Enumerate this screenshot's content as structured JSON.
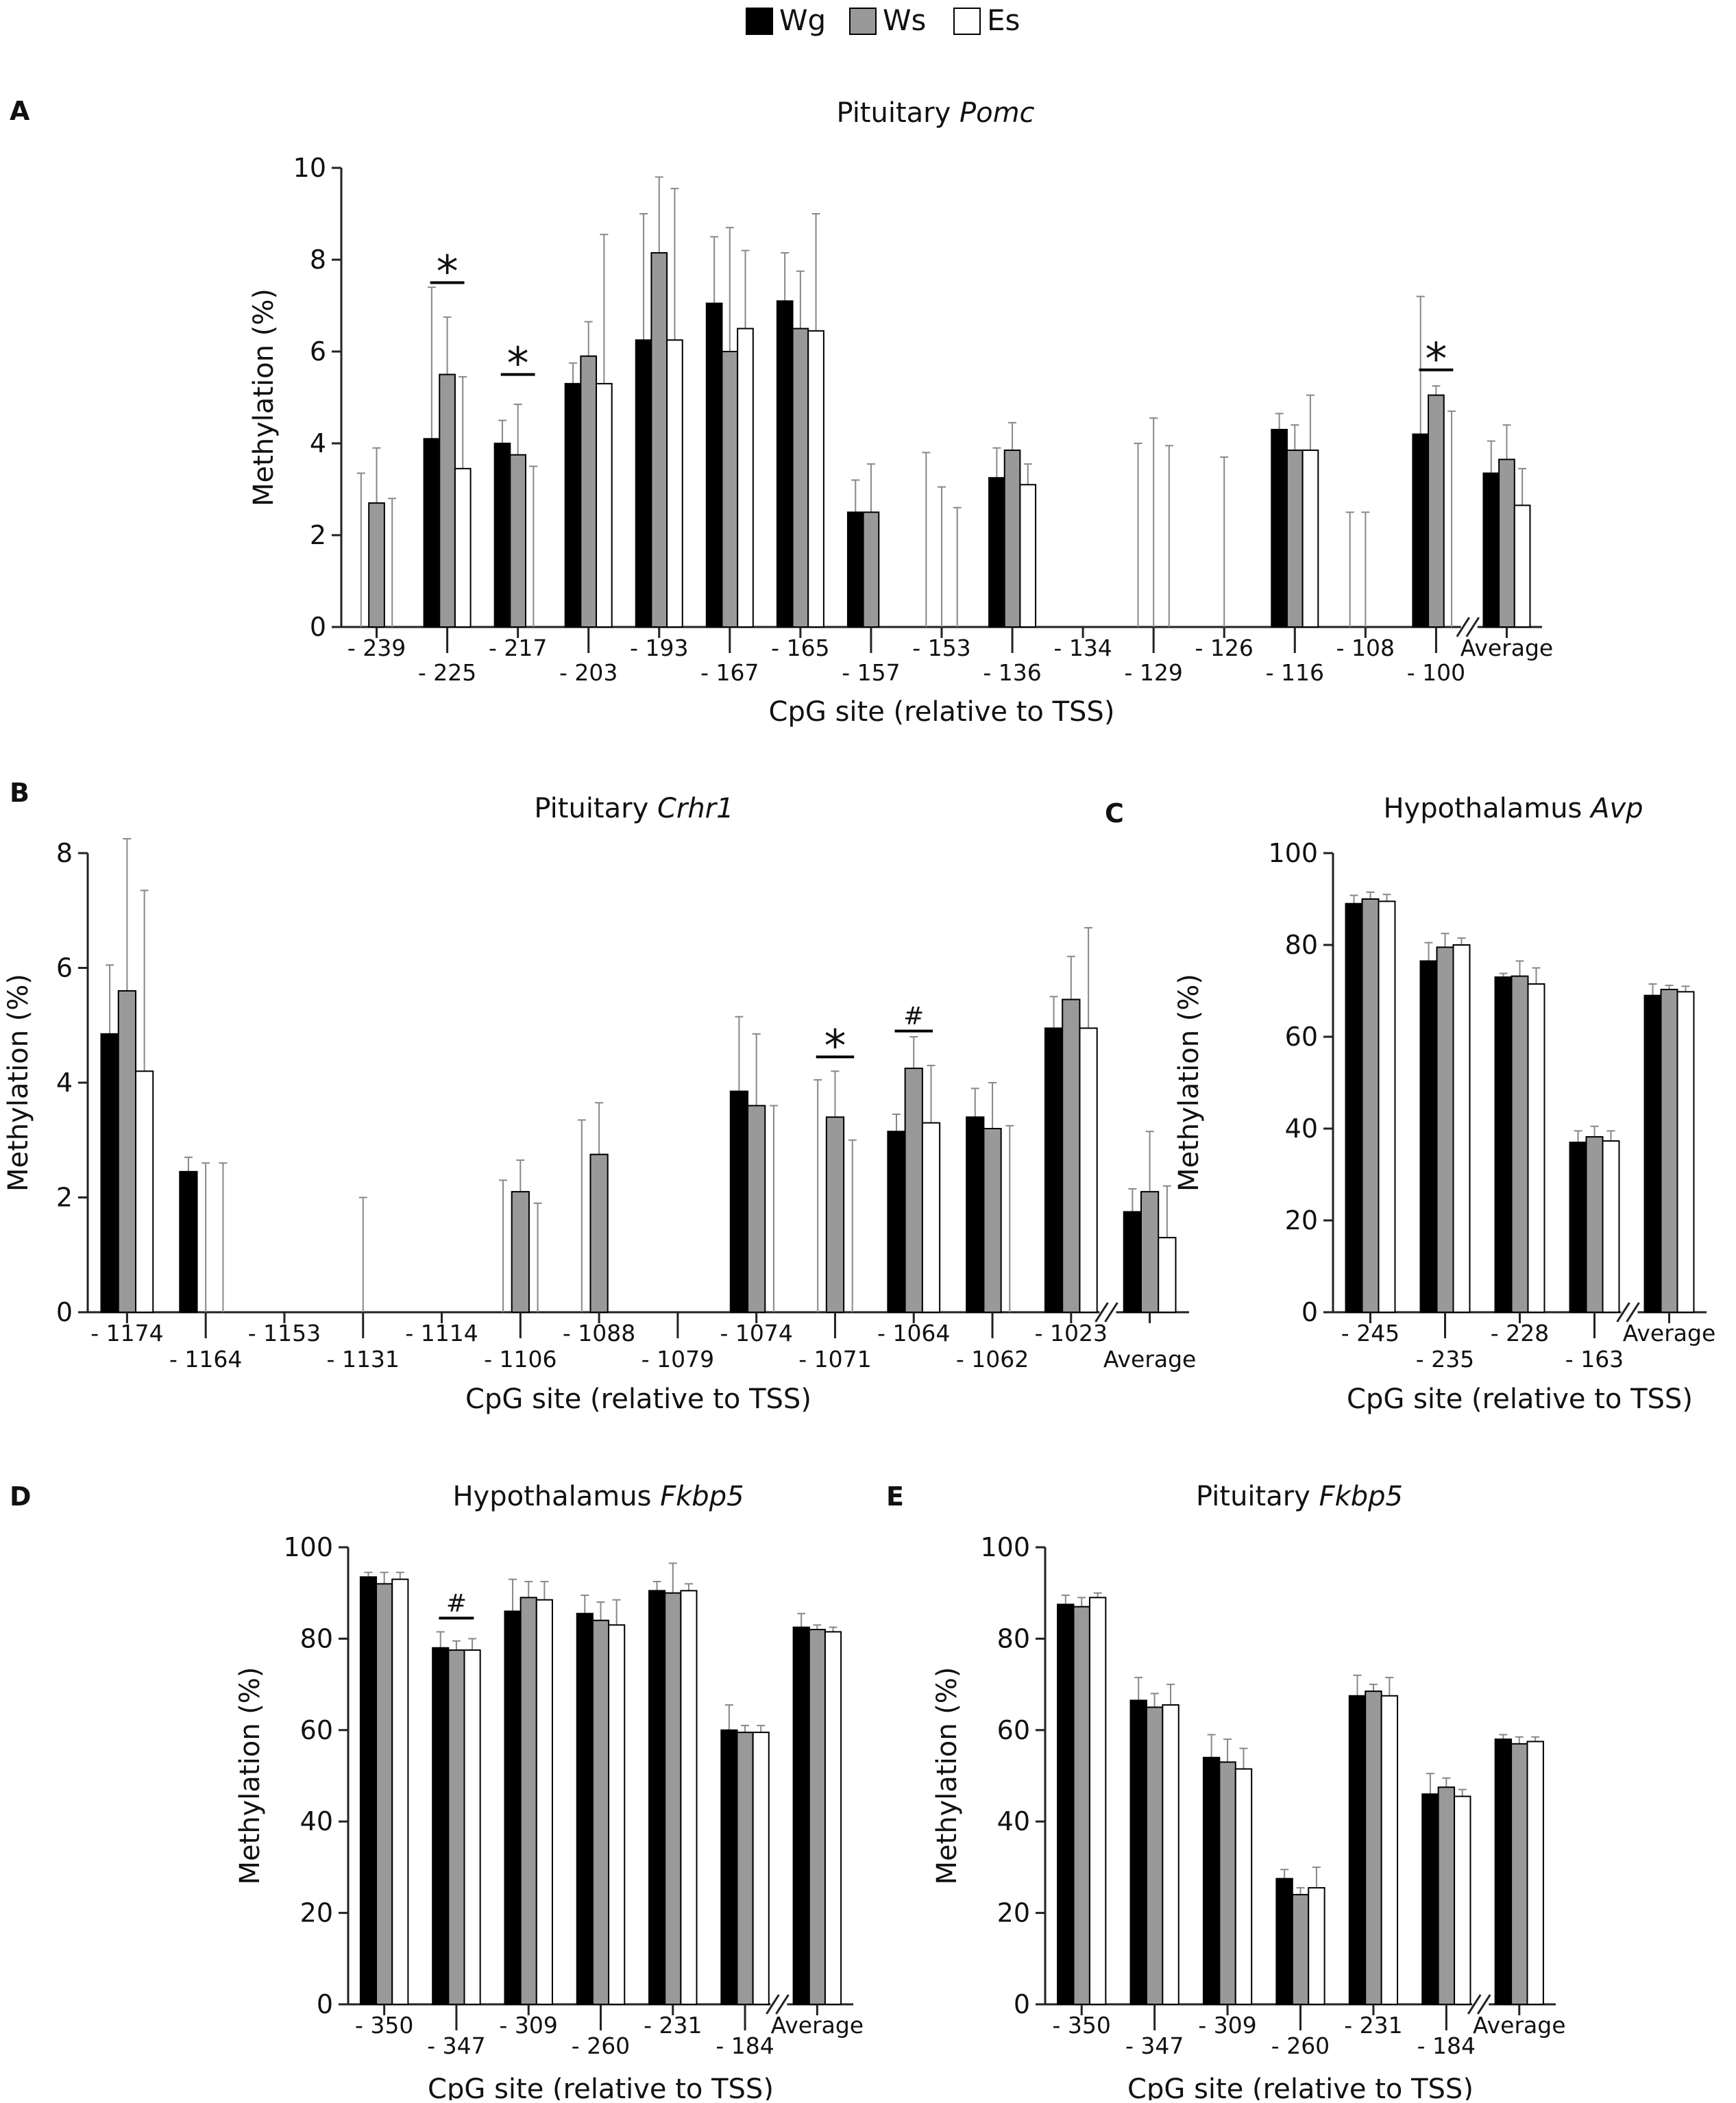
{
  "legend": {
    "items": [
      {
        "label": "Wg",
        "color": "#000000"
      },
      {
        "label": "Ws",
        "color": "#999999"
      },
      {
        "label": "Es",
        "color": "#ffffff"
      }
    ]
  },
  "chart_data": [
    {
      "panel": "A",
      "type": "bar",
      "title_plain": "Pituitary ",
      "title_italic": "Pomc",
      "ylabel": "Methylation (%)",
      "xlabel": "CpG site (relative to TSS)",
      "ylim": [
        0,
        10
      ],
      "yticks": [
        "0",
        "2",
        "4",
        "6",
        "8",
        "10"
      ],
      "categories": [
        "- 239",
        "- 225",
        "- 217",
        "- 203",
        "- 193",
        "- 167",
        "- 165",
        "- 157",
        "- 153",
        "- 136",
        "- 134",
        "- 129",
        "- 126",
        "- 116",
        "- 108",
        "- 100",
        "Average"
      ],
      "series": [
        {
          "name": "Wg",
          "values": [
            0,
            4.1,
            4.0,
            5.3,
            6.25,
            7.05,
            7.1,
            2.5,
            0,
            3.25,
            0,
            0,
            0,
            4.3,
            0,
            4.2,
            3.35
          ]
        },
        {
          "name": "Ws",
          "values": [
            2.7,
            5.5,
            3.75,
            5.9,
            8.15,
            6.0,
            6.5,
            2.5,
            0,
            3.85,
            0,
            0,
            0,
            3.85,
            0,
            5.05,
            3.65
          ]
        },
        {
          "name": "Es",
          "values": [
            0,
            3.45,
            0,
            5.3,
            6.25,
            6.5,
            6.45,
            0,
            0,
            3.1,
            0,
            0,
            0,
            3.85,
            0,
            0,
            2.65
          ]
        }
      ],
      "error_tops": [
        {
          "name": "Wg",
          "values": [
            3.35,
            7.4,
            4.5,
            5.75,
            9.0,
            8.5,
            8.15,
            3.2,
            3.8,
            3.9,
            0,
            4.0,
            0,
            4.65,
            2.5,
            7.2,
            4.05
          ]
        },
        {
          "name": "Ws",
          "values": [
            3.9,
            6.75,
            4.85,
            6.65,
            9.8,
            8.7,
            7.75,
            3.55,
            3.05,
            4.45,
            0,
            4.55,
            3.7,
            4.4,
            2.5,
            5.25,
            4.4
          ]
        },
        {
          "name": "Es",
          "values": [
            2.8,
            5.45,
            3.5,
            8.55,
            9.55,
            8.2,
            9.0,
            0,
            2.6,
            3.55,
            0,
            3.95,
            0,
            5.05,
            0,
            4.7,
            3.45
          ]
        }
      ],
      "error_bottoms": [
        {
          "name": "Wg",
          "values": [
            0,
            3.35,
            2.8,
            3.45,
            5.0,
            5.5,
            6.0,
            0,
            0,
            2.9,
            0,
            0,
            0,
            4.0,
            0,
            3.7,
            2.7
          ]
        },
        {
          "name": "Ws",
          "values": [
            0,
            4.3,
            2.7,
            5.2,
            5.8,
            4.5,
            5.3,
            0,
            0,
            3.3,
            0,
            0,
            0,
            3.4,
            0,
            4.8,
            2.9
          ]
        },
        {
          "name": "Es",
          "values": [
            0,
            1.5,
            0,
            3.8,
            4.9,
            4.5,
            4.0,
            0,
            0,
            2.7,
            0,
            0,
            0,
            2.7,
            0,
            0,
            1.8
          ]
        }
      ],
      "annotations": [
        {
          "text": "*",
          "category_index": 1,
          "level": 7.5
        },
        {
          "text": "*",
          "category_index": 2,
          "level": 5.5
        },
        {
          "text": "*",
          "category_index": 15,
          "level": 5.6
        }
      ]
    },
    {
      "panel": "B",
      "type": "bar",
      "title_plain": "Pituitary ",
      "title_italic": "Crhr1",
      "ylabel": "Methylation (%)",
      "xlabel": "CpG site (relative to TSS)",
      "ylim": [
        0,
        8
      ],
      "yticks": [
        "0",
        "2",
        "4",
        "6",
        "8"
      ],
      "categories": [
        "- 1174",
        "- 1164",
        "- 1153",
        "- 1131",
        "- 1114",
        "- 1106",
        "- 1088",
        "- 1079",
        "- 1074",
        "- 1071",
        "- 1064",
        "- 1062",
        "- 1023",
        "Average"
      ],
      "series": [
        {
          "name": "Wg",
          "values": [
            4.85,
            2.45,
            0,
            0,
            0,
            0,
            0,
            0,
            3.85,
            0,
            3.15,
            3.4,
            4.95,
            1.75
          ]
        },
        {
          "name": "Ws",
          "values": [
            5.6,
            0,
            0,
            0,
            0,
            2.1,
            2.75,
            0,
            3.6,
            3.4,
            4.25,
            3.2,
            5.45,
            2.1
          ]
        },
        {
          "name": "Es",
          "values": [
            4.2,
            0,
            0,
            0,
            0,
            0,
            0,
            0,
            0,
            0,
            3.3,
            0,
            4.95,
            1.3
          ]
        }
      ],
      "error_tops": [
        {
          "name": "Wg",
          "values": [
            6.05,
            2.7,
            0,
            0,
            0,
            2.3,
            3.35,
            0,
            5.15,
            4.05,
            3.45,
            3.9,
            5.5,
            2.15
          ]
        },
        {
          "name": "Ws",
          "values": [
            8.25,
            2.6,
            0,
            2.0,
            0,
            2.65,
            3.65,
            0,
            4.85,
            4.2,
            4.8,
            4.0,
            6.2,
            3.15
          ]
        },
        {
          "name": "Es",
          "values": [
            7.35,
            2.6,
            0,
            0,
            0,
            1.9,
            0,
            0,
            3.6,
            3.0,
            4.3,
            3.25,
            6.7,
            2.2
          ]
        }
      ],
      "error_bottoms": [
        {
          "name": "Wg",
          "values": [
            4.55,
            2.2,
            0,
            0,
            0,
            0,
            0,
            0,
            0,
            0,
            2.85,
            3.0,
            4.4,
            1.2
          ]
        },
        {
          "name": "Ws",
          "values": [
            4.0,
            0,
            0,
            0,
            0,
            1.6,
            1.9,
            0,
            2.4,
            2.6,
            3.7,
            2.4,
            4.7,
            1.1
          ]
        },
        {
          "name": "Es",
          "values": [
            0,
            0,
            0,
            0,
            0,
            0,
            0,
            0,
            0,
            0,
            2.4,
            0,
            3.2,
            0.4
          ]
        }
      ],
      "annotations": [
        {
          "text": "*",
          "category_index": 9,
          "level": 4.45
        },
        {
          "text": "#",
          "category_index": 10,
          "level": 4.9
        }
      ]
    },
    {
      "panel": "C",
      "type": "bar",
      "title_plain": "Hypothalamus ",
      "title_italic": "Avp",
      "ylabel": "Methylation (%)",
      "xlabel": "CpG site (relative to TSS)",
      "ylim": [
        0,
        100
      ],
      "yticks": [
        "0",
        "20",
        "40",
        "60",
        "80",
        "100"
      ],
      "categories": [
        "- 245",
        "- 235",
        "- 228",
        "- 163",
        "Average"
      ],
      "series": [
        {
          "name": "Wg",
          "values": [
            89,
            76.5,
            73,
            37,
            69
          ]
        },
        {
          "name": "Ws",
          "values": [
            90,
            79.5,
            73.2,
            38.2,
            70.3
          ]
        },
        {
          "name": "Es",
          "values": [
            89.5,
            80,
            71.5,
            37.3,
            69.8
          ]
        }
      ],
      "error_tops": [
        {
          "name": "Wg",
          "values": [
            90.8,
            80.5,
            73.8,
            39.5,
            71.5
          ]
        },
        {
          "name": "Ws",
          "values": [
            91.5,
            82.5,
            76.5,
            40.5,
            71.2
          ]
        },
        {
          "name": "Es",
          "values": [
            91,
            81.5,
            75,
            39.5,
            71
          ]
        }
      ],
      "error_bottoms": [
        {
          "name": "Wg",
          "values": [
            87,
            72.5,
            72,
            34.5,
            66.5
          ]
        },
        {
          "name": "Ws",
          "values": [
            88.5,
            76.5,
            70,
            36,
            69.4
          ]
        },
        {
          "name": "Es",
          "values": [
            88,
            78.5,
            68,
            35,
            68.6
          ]
        }
      ],
      "annotations": []
    },
    {
      "panel": "D",
      "type": "bar",
      "title_plain": "Hypothalamus ",
      "title_italic": "Fkbp5",
      "ylabel": "Methylation (%)",
      "xlabel": "CpG site (relative to TSS)",
      "ylim": [
        0,
        100
      ],
      "yticks": [
        "0",
        "20",
        "40",
        "60",
        "80",
        "100"
      ],
      "categories": [
        "- 350",
        "- 347",
        "- 309",
        "- 260",
        "- 231",
        "- 184",
        "Average"
      ],
      "series": [
        {
          "name": "Wg",
          "values": [
            93.5,
            78,
            86,
            85.5,
            90.5,
            60,
            82.5
          ]
        },
        {
          "name": "Ws",
          "values": [
            92,
            77.5,
            89,
            84,
            90,
            59.5,
            82
          ]
        },
        {
          "name": "Es",
          "values": [
            93,
            77.5,
            88.5,
            83,
            90.5,
            59.5,
            81.5
          ]
        }
      ],
      "error_tops": [
        {
          "name": "Wg",
          "values": [
            94.5,
            81.5,
            93,
            89.5,
            92.5,
            65.5,
            85.5
          ]
        },
        {
          "name": "Ws",
          "values": [
            94.5,
            79.5,
            92.5,
            88,
            96.5,
            61,
            83
          ]
        },
        {
          "name": "Es",
          "values": [
            94.5,
            80,
            92.5,
            88.5,
            92,
            61,
            82.5
          ]
        }
      ],
      "error_bottoms": [
        {
          "name": "Wg",
          "values": [
            92,
            76,
            83,
            79,
            88,
            58,
            80
          ]
        },
        {
          "name": "Ws",
          "values": [
            89.5,
            75.5,
            85.5,
            80,
            85,
            57.5,
            80.5
          ]
        },
        {
          "name": "Es",
          "values": [
            91.5,
            74.5,
            84.5,
            77,
            88.5,
            57.5,
            80.5
          ]
        }
      ],
      "annotations": [
        {
          "text": "#",
          "category_index": 1,
          "level": 84.5
        }
      ]
    },
    {
      "panel": "E",
      "type": "bar",
      "title_plain": "Pituitary ",
      "title_italic": "Fkbp5",
      "ylabel": "Methylation (%)",
      "xlabel": "CpG site (relative to TSS)",
      "ylim": [
        0,
        100
      ],
      "yticks": [
        "0",
        "20",
        "40",
        "60",
        "80",
        "100"
      ],
      "categories": [
        "- 350",
        "- 347",
        "- 309",
        "- 260",
        "- 231",
        "- 184",
        "Average"
      ],
      "series": [
        {
          "name": "Wg",
          "values": [
            87.5,
            66.5,
            54,
            27.5,
            67.5,
            46,
            58
          ]
        },
        {
          "name": "Ws",
          "values": [
            87,
            65,
            53,
            24,
            68.5,
            47.5,
            57
          ]
        },
        {
          "name": "Es",
          "values": [
            89,
            65.5,
            51.5,
            25.5,
            67.5,
            45.5,
            57.5
          ]
        }
      ],
      "error_tops": [
        {
          "name": "Wg",
          "values": [
            89.5,
            71.5,
            59,
            29.5,
            72,
            50.5,
            59
          ]
        },
        {
          "name": "Ws",
          "values": [
            89,
            68,
            58,
            25.5,
            70,
            49.5,
            58.5
          ]
        },
        {
          "name": "Es",
          "values": [
            90,
            70,
            56,
            30,
            71.5,
            47,
            58.5
          ]
        }
      ],
      "error_bottoms": [
        {
          "name": "Wg",
          "values": [
            85.5,
            63.5,
            51,
            25,
            64,
            42.5,
            57
          ]
        },
        {
          "name": "Ws",
          "values": [
            85,
            62,
            49,
            22,
            66,
            45,
            56
          ]
        },
        {
          "name": "Es",
          "values": [
            88,
            61,
            47,
            21,
            62,
            43.5,
            56.5
          ]
        }
      ],
      "annotations": []
    }
  ]
}
